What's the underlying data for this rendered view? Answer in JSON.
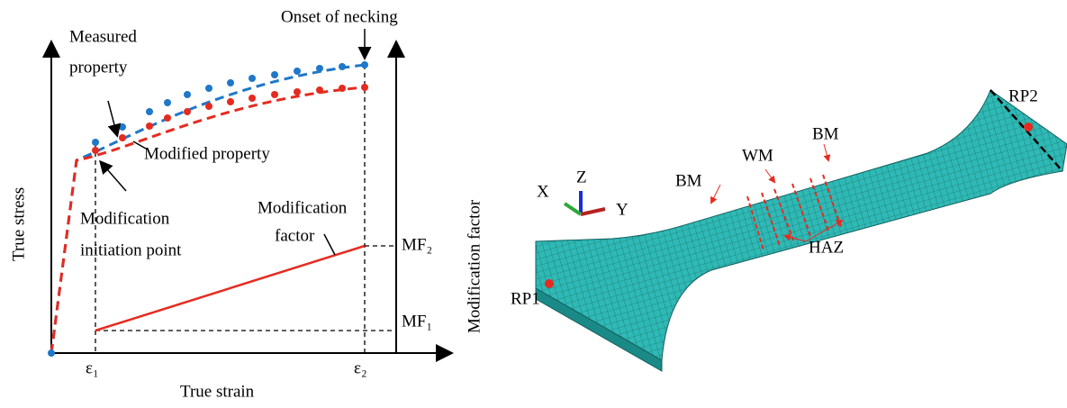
{
  "schematic": {
    "onset_label": "Onset of necking",
    "measured_label": [
      "Measured",
      "property"
    ],
    "modified_label": "Modified property",
    "initiation_label": [
      "Modification",
      "initiation point"
    ],
    "factor_label": [
      "Modification",
      "factor"
    ],
    "mf2": "MF₂",
    "mf1": "MF₁",
    "y_axis_title": "True stress",
    "x_axis_title": "True strain",
    "eps1": "ε₁",
    "eps2": "ε₂",
    "y2_axis_title": "Modification  factor"
  },
  "model": {
    "axis_z": "Z",
    "axis_x": "X",
    "axis_y": "Y",
    "bm_left": "BM",
    "wm": "WM",
    "bm_right": "BM",
    "haz": "HAZ",
    "rp1": "RP1",
    "rp2": "RP2"
  }
}
